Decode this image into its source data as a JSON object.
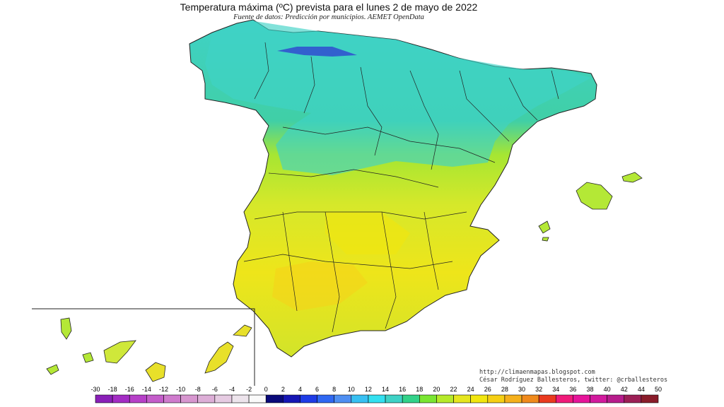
{
  "header": {
    "title": "Temperatura máxima (ºC) prevista para el lunes 2 de mayo de 2022",
    "subtitle": "Fuente de datos: Predicción por municipios. AEMET OpenData"
  },
  "credits": {
    "url": "http://climaenmapas.blogspot.com",
    "author": "César Rodríguez Ballesteros, twitter: @crballesteros"
  },
  "map": {
    "regions": [
      {
        "name": "peninsula-north",
        "temperature_band": "12-16",
        "color": "#3fd2c6"
      },
      {
        "name": "peninsula-center",
        "temperature_band": "18-20",
        "color": "#a6e632"
      },
      {
        "name": "peninsula-south",
        "temperature_band": "20-24",
        "color": "#e6e61f"
      },
      {
        "name": "balearic-islands",
        "temperature_band": "18-20",
        "color": "#b4e836"
      },
      {
        "name": "canary-islands",
        "temperature_band": "20-24",
        "color": "#e8e02a"
      }
    ]
  },
  "legend": {
    "ticks": [
      "-30",
      "-18",
      "-16",
      "-14",
      "-12",
      "-10",
      "-8",
      "-6",
      "-4",
      "-2",
      "0",
      "2",
      "4",
      "6",
      "8",
      "10",
      "12",
      "14",
      "16",
      "18",
      "20",
      "22",
      "24",
      "26",
      "28",
      "30",
      "32",
      "34",
      "36",
      "38",
      "40",
      "42",
      "44",
      "50"
    ],
    "colors": [
      "#8a1fb8",
      "#a32cc4",
      "#b640c8",
      "#c45dca",
      "#cf7bcd",
      "#d796cf",
      "#ddaed7",
      "#e6cbe2",
      "#ede4ec",
      "#fafafa",
      "#0a0a7a",
      "#1616b4",
      "#1e3ce6",
      "#2f68f2",
      "#4f8ff2",
      "#38c0f2",
      "#33e0f0",
      "#3fd2c6",
      "#33d28a",
      "#7ae632",
      "#b6ea2a",
      "#e6e61f",
      "#f2e60e",
      "#f6cf14",
      "#f5b01c",
      "#f08a1c",
      "#ea3a1e",
      "#f01a7a",
      "#e6149a",
      "#d21a9e",
      "#b71c8c",
      "#9c1f56",
      "#8a1c2a"
    ]
  }
}
